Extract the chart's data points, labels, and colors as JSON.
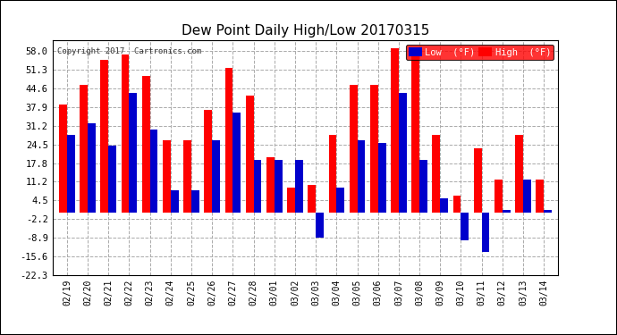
{
  "title": "Dew Point Daily High/Low 20170315",
  "copyright": "Copyright 2017  Cartronics.com",
  "dates": [
    "02/19",
    "02/20",
    "02/21",
    "02/22",
    "02/23",
    "02/24",
    "02/25",
    "02/26",
    "02/27",
    "02/28",
    "03/01",
    "03/02",
    "03/03",
    "03/04",
    "03/05",
    "03/06",
    "03/07",
    "03/08",
    "03/09",
    "03/10",
    "03/11",
    "03/12",
    "03/13",
    "03/14"
  ],
  "high": [
    39,
    46,
    55,
    57,
    49,
    26,
    26,
    37,
    52,
    42,
    20,
    9,
    10,
    28,
    46,
    46,
    59,
    59,
    28,
    6,
    23,
    12,
    28,
    12
  ],
  "low": [
    28,
    32,
    24,
    43,
    30,
    8,
    8,
    26,
    36,
    19,
    19,
    19,
    -9,
    9,
    26,
    25,
    43,
    19,
    5,
    -10,
    -14,
    1,
    12,
    1
  ],
  "high_color": "#ff0000",
  "low_color": "#0000cc",
  "bg_color": "#ffffff",
  "grid_color": "#aaaaaa",
  "ytick_vals": [
    -22.3,
    -15.6,
    -8.9,
    -2.2,
    4.5,
    11.2,
    17.8,
    24.5,
    31.2,
    37.9,
    44.6,
    51.3,
    58.0
  ],
  "ytick_labels": [
    "-22.3",
    "-15.6",
    "-8.9",
    "-2.2",
    "4.5",
    "11.2",
    "17.8",
    "24.5",
    "31.2",
    "37.9",
    "44.6",
    "51.3",
    "58.0"
  ],
  "ymin": -22.3,
  "ymax": 62.0,
  "bar_width": 0.38,
  "legend_low_label": "Low  (°F)",
  "legend_high_label": "High  (°F)",
  "outer_border_color": "#000000",
  "title_fontsize": 11
}
